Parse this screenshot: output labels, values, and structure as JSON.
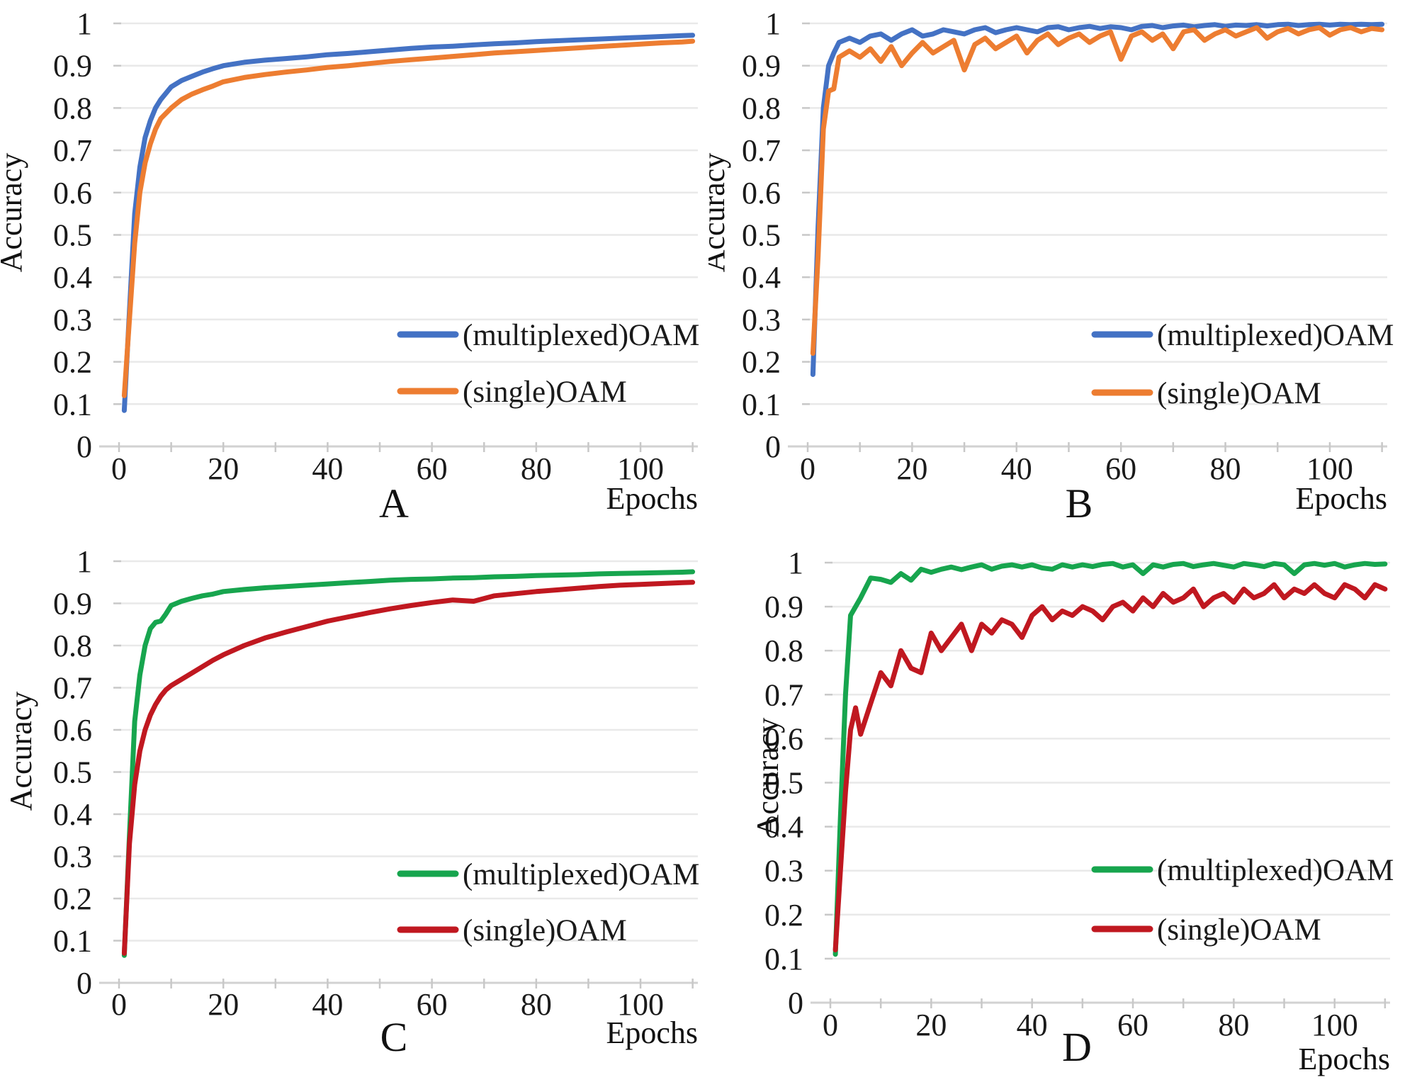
{
  "page": {
    "background": "#ffffff",
    "description_labels": {
      "x_axis": "Epochs",
      "y_axis": "Accuracy"
    }
  },
  "chart_data": [
    {
      "panel": "A",
      "type": "line",
      "title": "",
      "xlabel": "Epochs",
      "ylabel": "Accuracy",
      "xlim": [
        0,
        111
      ],
      "ylim": [
        0,
        1
      ],
      "xticks": [
        0,
        20,
        40,
        60,
        80,
        100
      ],
      "xtick_minor_step": 10,
      "ytick_labels": [
        "0",
        "0.1",
        "0.2",
        "0.3",
        "0.4",
        "0.5",
        "0.6",
        "0.7",
        "0.8",
        "0.9",
        "1"
      ],
      "grid": "horizontal-light",
      "legend_position": "inside-center-right",
      "series": [
        {
          "name": "(multiplexed)OAM",
          "color": "#4472C4",
          "x": [
            1,
            2,
            3,
            4,
            5,
            6,
            7,
            8,
            10,
            12,
            14,
            16,
            18,
            20,
            24,
            28,
            32,
            36,
            40,
            44,
            48,
            52,
            56,
            60,
            64,
            68,
            72,
            76,
            80,
            84,
            88,
            92,
            96,
            100,
            104,
            108,
            110
          ],
          "y": [
            0.085,
            0.32,
            0.55,
            0.66,
            0.73,
            0.77,
            0.8,
            0.82,
            0.85,
            0.865,
            0.875,
            0.885,
            0.893,
            0.9,
            0.908,
            0.913,
            0.917,
            0.921,
            0.926,
            0.929,
            0.933,
            0.937,
            0.941,
            0.944,
            0.946,
            0.949,
            0.952,
            0.954,
            0.957,
            0.959,
            0.961,
            0.963,
            0.965,
            0.967,
            0.969,
            0.971,
            0.972
          ]
        },
        {
          "name": "(single)OAM",
          "color": "#ED7D31",
          "x": [
            1,
            2,
            3,
            4,
            5,
            6,
            7,
            8,
            10,
            12,
            14,
            16,
            18,
            20,
            24,
            28,
            32,
            36,
            40,
            44,
            48,
            52,
            56,
            60,
            64,
            68,
            72,
            76,
            80,
            84,
            88,
            92,
            96,
            100,
            104,
            108,
            110
          ],
          "y": [
            0.12,
            0.3,
            0.48,
            0.6,
            0.67,
            0.715,
            0.75,
            0.775,
            0.8,
            0.82,
            0.833,
            0.843,
            0.852,
            0.862,
            0.872,
            0.879,
            0.885,
            0.89,
            0.896,
            0.9,
            0.905,
            0.91,
            0.914,
            0.918,
            0.922,
            0.926,
            0.93,
            0.933,
            0.936,
            0.939,
            0.942,
            0.945,
            0.948,
            0.951,
            0.954,
            0.956,
            0.958
          ]
        }
      ]
    },
    {
      "panel": "B",
      "type": "line",
      "title": "",
      "xlabel": "Epochs",
      "ylabel": "Accuracy",
      "xlim": [
        0,
        111
      ],
      "ylim": [
        0,
        1
      ],
      "xticks": [
        0,
        20,
        40,
        60,
        80,
        100
      ],
      "xtick_minor_step": 10,
      "ytick_labels": [
        "0",
        "0.1",
        "0.2",
        "0.3",
        "0.4",
        "0.5",
        "0.6",
        "0.7",
        "0.8",
        "0.9",
        "1"
      ],
      "grid": "horizontal-light",
      "legend_position": "inside-center-right",
      "series": [
        {
          "name": "(multiplexed)OAM",
          "color": "#4472C4",
          "x": [
            1,
            2,
            3,
            4,
            5,
            6,
            8,
            10,
            12,
            14,
            16,
            18,
            20,
            22,
            24,
            26,
            28,
            30,
            32,
            34,
            36,
            38,
            40,
            42,
            44,
            46,
            48,
            50,
            52,
            54,
            56,
            58,
            60,
            62,
            64,
            66,
            68,
            70,
            72,
            74,
            76,
            78,
            80,
            82,
            84,
            86,
            88,
            90,
            92,
            94,
            96,
            98,
            100,
            102,
            104,
            106,
            108,
            110
          ],
          "y": [
            0.17,
            0.52,
            0.8,
            0.9,
            0.93,
            0.955,
            0.965,
            0.955,
            0.97,
            0.975,
            0.96,
            0.975,
            0.985,
            0.97,
            0.975,
            0.985,
            0.98,
            0.975,
            0.985,
            0.99,
            0.978,
            0.985,
            0.99,
            0.985,
            0.98,
            0.99,
            0.992,
            0.985,
            0.99,
            0.993,
            0.988,
            0.992,
            0.99,
            0.985,
            0.993,
            0.995,
            0.99,
            0.994,
            0.996,
            0.992,
            0.995,
            0.997,
            0.993,
            0.996,
            0.995,
            0.997,
            0.994,
            0.997,
            0.998,
            0.995,
            0.997,
            0.998,
            0.996,
            0.998,
            0.997,
            0.998,
            0.997,
            0.998
          ]
        },
        {
          "name": "(single)OAM",
          "color": "#ED7D31",
          "x": [
            1,
            2,
            3,
            4,
            5,
            6,
            8,
            10,
            12,
            14,
            16,
            18,
            20,
            22,
            24,
            26,
            28,
            30,
            32,
            34,
            36,
            38,
            40,
            42,
            44,
            46,
            48,
            50,
            52,
            54,
            56,
            58,
            60,
            62,
            64,
            66,
            68,
            70,
            72,
            74,
            76,
            78,
            80,
            82,
            84,
            86,
            88,
            90,
            92,
            94,
            96,
            98,
            100,
            102,
            104,
            106,
            108,
            110
          ],
          "y": [
            0.22,
            0.45,
            0.75,
            0.84,
            0.845,
            0.92,
            0.935,
            0.92,
            0.94,
            0.91,
            0.945,
            0.9,
            0.93,
            0.955,
            0.93,
            0.945,
            0.96,
            0.89,
            0.95,
            0.965,
            0.94,
            0.955,
            0.97,
            0.93,
            0.96,
            0.975,
            0.95,
            0.965,
            0.975,
            0.955,
            0.97,
            0.98,
            0.915,
            0.97,
            0.98,
            0.96,
            0.975,
            0.94,
            0.98,
            0.985,
            0.96,
            0.975,
            0.985,
            0.97,
            0.98,
            0.99,
            0.965,
            0.98,
            0.988,
            0.975,
            0.985,
            0.99,
            0.972,
            0.985,
            0.99,
            0.98,
            0.988,
            0.985
          ]
        }
      ]
    },
    {
      "panel": "C",
      "type": "line",
      "title": "",
      "xlabel": "Epochs",
      "ylabel": "Accuracy",
      "xlim": [
        0,
        111
      ],
      "ylim": [
        0,
        1
      ],
      "xticks": [
        0,
        20,
        40,
        60,
        80,
        100
      ],
      "xtick_minor_step": 10,
      "ytick_labels": [
        "0",
        "0.1",
        "0.2",
        "0.3",
        "0.4",
        "0.5",
        "0.6",
        "0.7",
        "0.8",
        "0.9",
        "1"
      ],
      "grid": "horizontal-light",
      "legend_position": "inside-center-right",
      "series": [
        {
          "name": "(multiplexed)OAM",
          "color": "#17A54E",
          "x": [
            1,
            2,
            3,
            4,
            5,
            6,
            7,
            8,
            9,
            10,
            12,
            14,
            16,
            18,
            20,
            24,
            28,
            32,
            36,
            40,
            44,
            48,
            52,
            56,
            60,
            64,
            68,
            72,
            76,
            80,
            84,
            88,
            92,
            96,
            100,
            104,
            108,
            110
          ],
          "y": [
            0.065,
            0.35,
            0.62,
            0.73,
            0.8,
            0.84,
            0.855,
            0.858,
            0.875,
            0.895,
            0.905,
            0.912,
            0.918,
            0.922,
            0.928,
            0.933,
            0.937,
            0.94,
            0.943,
            0.946,
            0.949,
            0.952,
            0.955,
            0.957,
            0.958,
            0.96,
            0.961,
            0.963,
            0.964,
            0.966,
            0.967,
            0.968,
            0.97,
            0.971,
            0.972,
            0.973,
            0.974,
            0.975
          ]
        },
        {
          "name": "(single)OAM",
          "color": "#C01820",
          "x": [
            1,
            2,
            3,
            4,
            5,
            6,
            7,
            8,
            9,
            10,
            12,
            14,
            16,
            18,
            20,
            24,
            28,
            32,
            36,
            40,
            44,
            48,
            52,
            56,
            60,
            64,
            68,
            72,
            76,
            80,
            84,
            88,
            92,
            96,
            100,
            104,
            108,
            110
          ],
          "y": [
            0.07,
            0.33,
            0.47,
            0.55,
            0.6,
            0.635,
            0.66,
            0.68,
            0.695,
            0.705,
            0.72,
            0.735,
            0.75,
            0.765,
            0.778,
            0.8,
            0.818,
            0.832,
            0.845,
            0.858,
            0.868,
            0.878,
            0.887,
            0.895,
            0.902,
            0.908,
            0.905,
            0.918,
            0.923,
            0.928,
            0.932,
            0.936,
            0.94,
            0.943,
            0.945,
            0.947,
            0.949,
            0.95
          ]
        }
      ]
    },
    {
      "panel": "D",
      "type": "line",
      "title": "",
      "xlabel": "Epochs",
      "ylabel": "Accuracy",
      "xlim": [
        0,
        111
      ],
      "ylim": [
        0,
        1
      ],
      "xticks": [
        0,
        20,
        40,
        60,
        80,
        100
      ],
      "xtick_minor_step": 10,
      "ytick_labels": [
        "0",
        "0.1",
        "0.2",
        "0.3",
        "0.4",
        "0.5",
        "0.6",
        "0.7",
        "0.8",
        "0.9",
        "1"
      ],
      "grid": "horizontal-light",
      "legend_position": "inside-center-right",
      "series": [
        {
          "name": "(multiplexed)OAM",
          "color": "#17A54E",
          "x": [
            1,
            2,
            3,
            4,
            5,
            6,
            8,
            10,
            12,
            14,
            16,
            18,
            20,
            22,
            24,
            26,
            28,
            30,
            32,
            34,
            36,
            38,
            40,
            42,
            44,
            46,
            48,
            50,
            52,
            54,
            56,
            58,
            60,
            62,
            64,
            66,
            68,
            70,
            72,
            74,
            76,
            78,
            80,
            82,
            84,
            86,
            88,
            90,
            92,
            94,
            96,
            98,
            100,
            102,
            104,
            106,
            108,
            110
          ],
          "y": [
            0.11,
            0.42,
            0.7,
            0.88,
            0.9,
            0.92,
            0.965,
            0.962,
            0.955,
            0.975,
            0.96,
            0.985,
            0.978,
            0.985,
            0.99,
            0.984,
            0.99,
            0.995,
            0.985,
            0.992,
            0.995,
            0.99,
            0.995,
            0.988,
            0.985,
            0.995,
            0.99,
            0.995,
            0.991,
            0.996,
            0.998,
            0.99,
            0.995,
            0.975,
            0.995,
            0.99,
            0.996,
            0.998,
            0.991,
            0.995,
            0.998,
            0.994,
            0.99,
            0.998,
            0.995,
            0.991,
            0.998,
            0.995,
            0.975,
            0.995,
            0.998,
            0.994,
            0.998,
            0.99,
            0.995,
            0.998,
            0.996,
            0.997
          ]
        },
        {
          "name": "(single)OAM",
          "color": "#C01820",
          "x": [
            1,
            2,
            3,
            4,
            5,
            6,
            8,
            10,
            12,
            14,
            16,
            18,
            20,
            22,
            24,
            26,
            28,
            30,
            32,
            34,
            36,
            38,
            40,
            42,
            44,
            46,
            48,
            50,
            52,
            54,
            56,
            58,
            60,
            62,
            64,
            66,
            68,
            70,
            72,
            74,
            76,
            78,
            80,
            82,
            84,
            86,
            88,
            90,
            92,
            94,
            96,
            98,
            100,
            102,
            104,
            106,
            108,
            110
          ],
          "y": [
            0.12,
            0.3,
            0.48,
            0.62,
            0.67,
            0.61,
            0.68,
            0.75,
            0.72,
            0.8,
            0.76,
            0.75,
            0.84,
            0.8,
            0.83,
            0.86,
            0.8,
            0.86,
            0.84,
            0.87,
            0.86,
            0.83,
            0.88,
            0.9,
            0.87,
            0.89,
            0.88,
            0.9,
            0.89,
            0.87,
            0.9,
            0.91,
            0.89,
            0.92,
            0.9,
            0.93,
            0.91,
            0.92,
            0.94,
            0.9,
            0.92,
            0.93,
            0.91,
            0.94,
            0.92,
            0.93,
            0.95,
            0.92,
            0.94,
            0.93,
            0.95,
            0.93,
            0.92,
            0.95,
            0.94,
            0.92,
            0.95,
            0.94
          ]
        }
      ]
    }
  ],
  "style": {
    "gridline_color": "#e9e9e9",
    "axis_color": "#d2d2d2",
    "tick_color": "#c8c8c8",
    "text_color": "#1a1a1a"
  }
}
